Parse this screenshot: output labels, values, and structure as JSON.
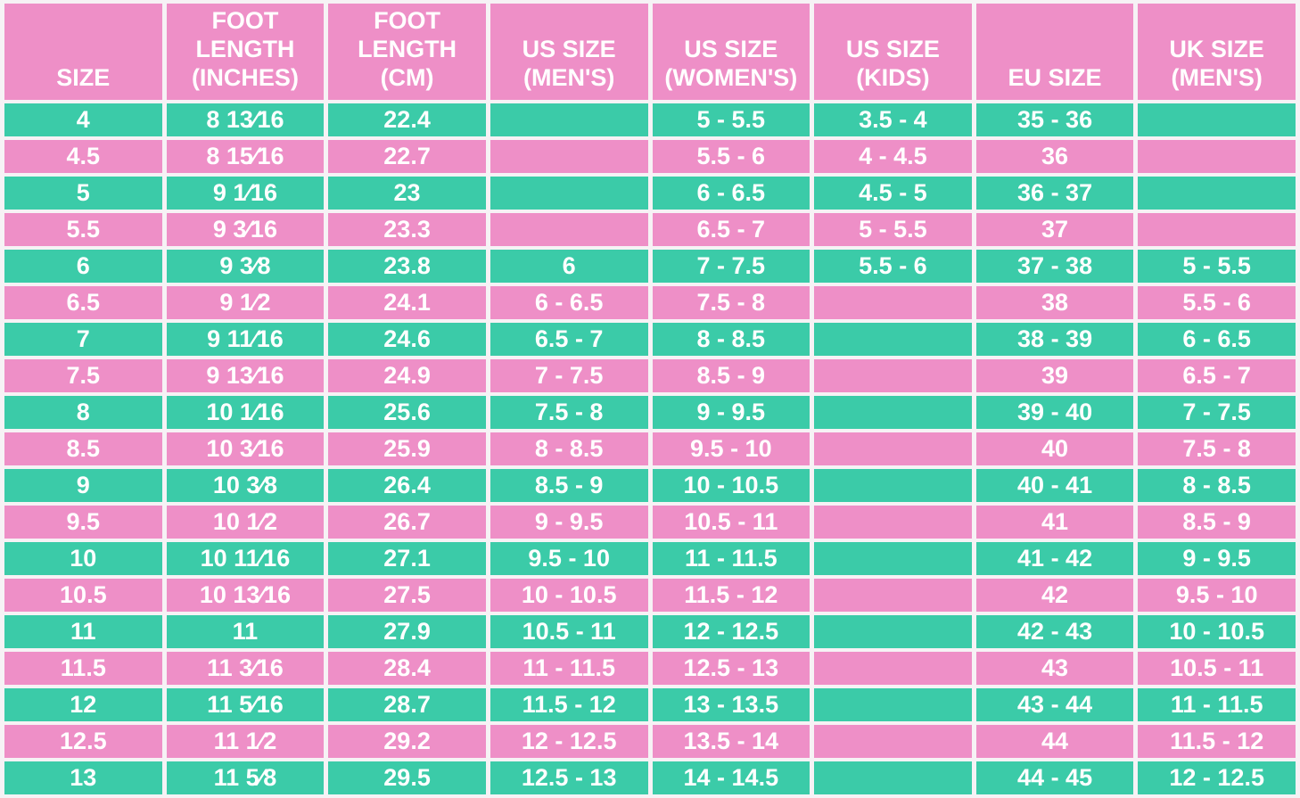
{
  "colors": {
    "header_bg": "#ee8fc7",
    "row_teal": "#3bcba8",
    "row_pink": "#ee8fc7",
    "divider": "#f6f2f5",
    "text": "#ffffff"
  },
  "chart_data": {
    "type": "table",
    "columns": [
      "SIZE",
      "FOOT LENGTH (INCHES)",
      "FOOT LENGTH (CM)",
      "US SIZE (MEN'S)",
      "US SIZE (WOMEN'S)",
      "US SIZE (KIDS)",
      "EU SIZE",
      "UK SIZE (MEN'S)"
    ],
    "rows": [
      [
        "4",
        "8 13⁄16",
        "22.4",
        "",
        "5 - 5.5",
        "3.5 - 4",
        "35 - 36",
        ""
      ],
      [
        "4.5",
        "8 15⁄16",
        "22.7",
        "",
        "5.5 - 6",
        "4 - 4.5",
        "36",
        ""
      ],
      [
        "5",
        "9 1⁄16",
        "23",
        "",
        "6 - 6.5",
        "4.5 - 5",
        "36 - 37",
        ""
      ],
      [
        "5.5",
        "9 3⁄16",
        "23.3",
        "",
        "6.5 - 7",
        "5 - 5.5",
        "37",
        ""
      ],
      [
        "6",
        "9 3⁄8",
        "23.8",
        "6",
        "7 - 7.5",
        "5.5 - 6",
        "37 - 38",
        "5 - 5.5"
      ],
      [
        "6.5",
        "9 1⁄2",
        "24.1",
        "6 - 6.5",
        "7.5 - 8",
        "",
        "38",
        "5.5 - 6"
      ],
      [
        "7",
        "9 11⁄16",
        "24.6",
        "6.5 - 7",
        "8 - 8.5",
        "",
        "38 - 39",
        "6 - 6.5"
      ],
      [
        "7.5",
        "9 13⁄16",
        "24.9",
        "7 - 7.5",
        "8.5 - 9",
        "",
        "39",
        "6.5 - 7"
      ],
      [
        "8",
        "10 1⁄16",
        "25.6",
        "7.5 - 8",
        "9 - 9.5",
        "",
        "39 - 40",
        "7 - 7.5"
      ],
      [
        "8.5",
        "10 3⁄16",
        "25.9",
        "8 - 8.5",
        "9.5 - 10",
        "",
        "40",
        "7.5 - 8"
      ],
      [
        "9",
        "10 3⁄8",
        "26.4",
        "8.5 - 9",
        "10 - 10.5",
        "",
        "40 - 41",
        "8 - 8.5"
      ],
      [
        "9.5",
        "10 1⁄2",
        "26.7",
        "9 - 9.5",
        "10.5 - 11",
        "",
        "41",
        "8.5 - 9"
      ],
      [
        "10",
        "10 11⁄16",
        "27.1",
        "9.5 - 10",
        "11 - 11.5",
        "",
        "41 - 42",
        "9 - 9.5"
      ],
      [
        "10.5",
        "10 13⁄16",
        "27.5",
        "10 - 10.5",
        "11.5 - 12",
        "",
        "42",
        "9.5 - 10"
      ],
      [
        "11",
        "11",
        "27.9",
        "10.5 - 11",
        "12 - 12.5",
        "",
        "42 - 43",
        "10 - 10.5"
      ],
      [
        "11.5",
        "11 3⁄16",
        "28.4",
        "11 - 11.5",
        "12.5 - 13",
        "",
        "43",
        "10.5 - 11"
      ],
      [
        "12",
        "11 5⁄16",
        "28.7",
        "11.5 - 12",
        "13 - 13.5",
        "",
        "43 - 44",
        "11 - 11.5"
      ],
      [
        "12.5",
        "11 1⁄2",
        "29.2",
        "12 - 12.5",
        "13.5 - 14",
        "",
        "44",
        "11.5 - 12"
      ],
      [
        "13",
        "11 5⁄8",
        "29.5",
        "12.5 - 13",
        "14 - 14.5",
        "",
        "44 - 45",
        "12 - 12.5"
      ]
    ]
  }
}
